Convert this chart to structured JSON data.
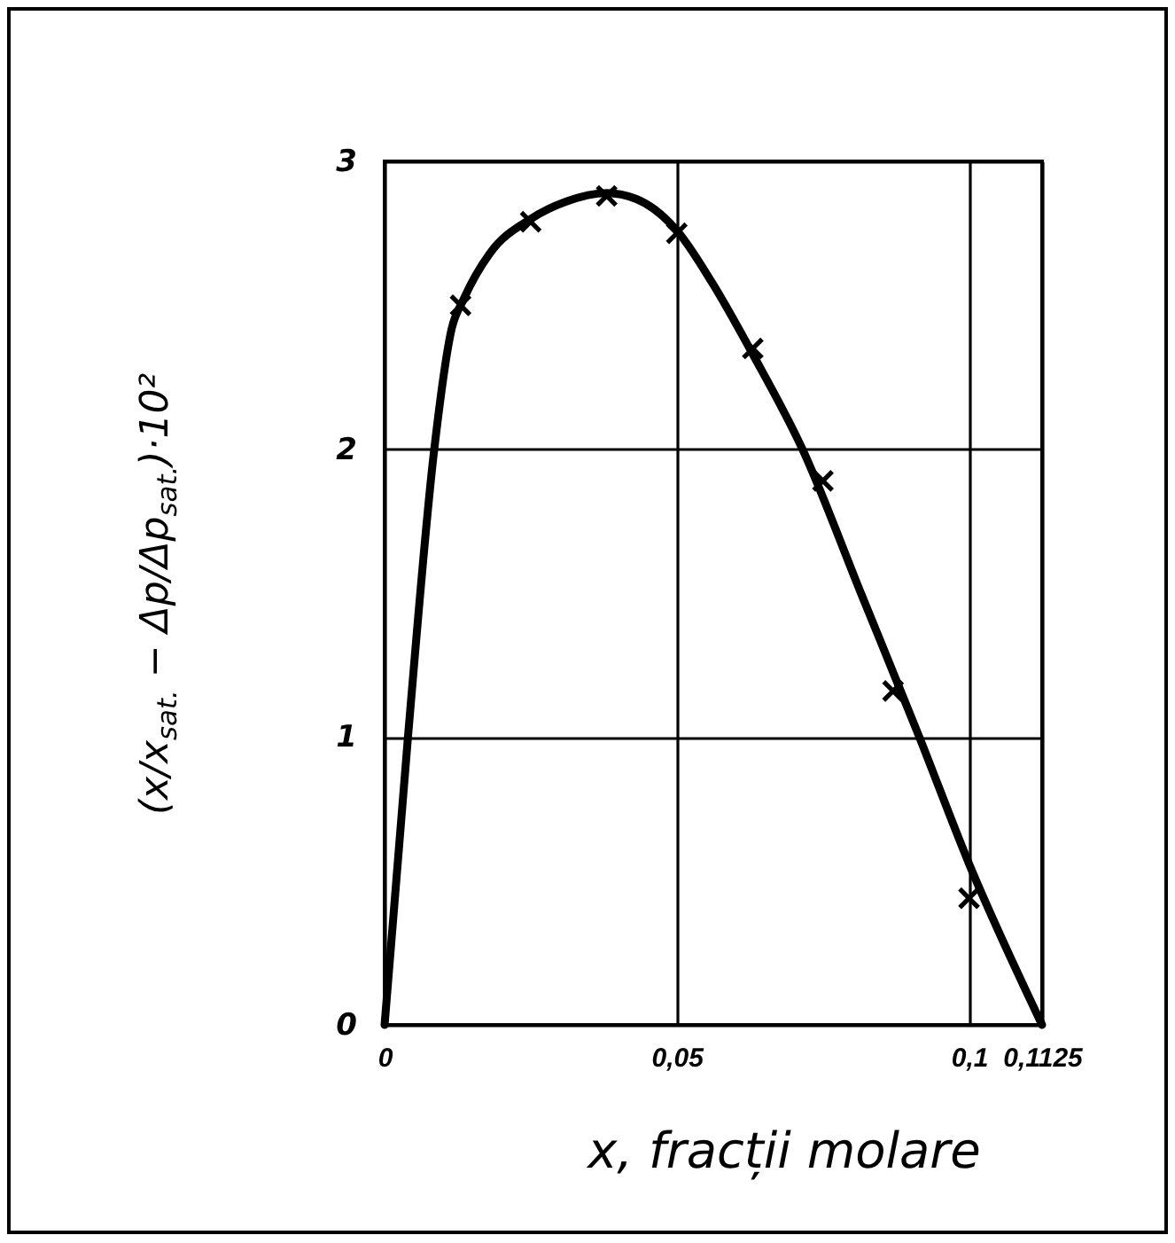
{
  "chart_data": {
    "type": "scatter",
    "xlabel": "x, fracții molare",
    "ylabel": "(x/x$_{sat.}$ − Δp/Δp$_{sat.}$)·10²",
    "xlim": [
      0,
      0.1125
    ],
    "xticks": [
      0,
      {
        "value": 0.05,
        "label": "0,05"
      },
      {
        "value": 0.1,
        "label": "0,1"
      },
      {
        "value": 0.1125,
        "label": "0,1125"
      }
    ],
    "ylim": [
      0,
      3
    ],
    "yticks": [
      0,
      1,
      2,
      3
    ],
    "grid": true,
    "series": [
      {
        "type": "line",
        "marker": "none",
        "color": "#000000",
        "x": [
          0,
          0.004,
          0.0085,
          0.0115,
          0.0135,
          0.018,
          0.025,
          0.031,
          0.038,
          0.043,
          0.05,
          0.056,
          0.063,
          0.0715,
          0.0815,
          0.0915,
          0.1,
          0.1125
        ],
        "values": [
          0,
          1.0,
          2.0,
          2.42,
          2.52,
          2.68,
          2.8,
          2.86,
          2.89,
          2.87,
          2.76,
          2.58,
          2.33,
          2.0,
          1.5,
          1.0,
          0.56,
          0
        ]
      },
      {
        "type": "scatter",
        "marker": "cross",
        "color": "#000000",
        "x": [
          0.013,
          0.025,
          0.038,
          0.05,
          0.063,
          0.075,
          0.087,
          0.1
        ],
        "values": [
          2.5,
          2.79,
          2.88,
          2.75,
          2.35,
          1.89,
          1.16,
          0.44
        ]
      }
    ]
  }
}
